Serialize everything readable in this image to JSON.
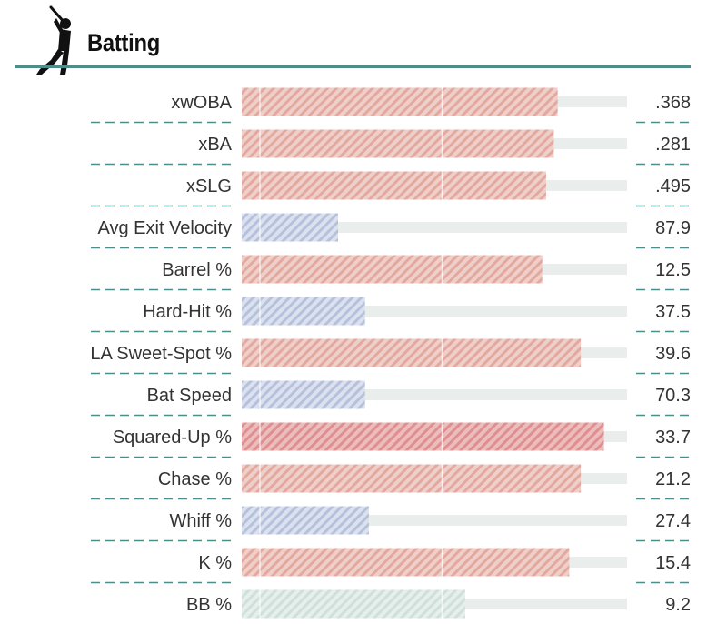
{
  "section": {
    "title": "Batting",
    "icon": "baseball-batter-icon"
  },
  "colors": {
    "header_rule": "#4f8d8b",
    "divider": "#4f8d8b",
    "track": "#e9eeed",
    "bar_red": "#e3a99f",
    "bar_red_strong": "#e08e8e",
    "bar_blue": "#b6c1dc",
    "bar_green": "#c8dcd6"
  },
  "chart_data": {
    "type": "bar",
    "orientation": "horizontal",
    "value_axis": "percentile",
    "xlim": [
      0,
      100
    ],
    "grid": false,
    "legend": "none",
    "metrics": [
      {
        "label": "xwOBA",
        "value": ".368",
        "percentile": 82,
        "color": "red"
      },
      {
        "label": "xBA",
        "value": ".281",
        "percentile": 81,
        "color": "red"
      },
      {
        "label": "xSLG",
        "value": ".495",
        "percentile": 79,
        "color": "red"
      },
      {
        "label": "Avg Exit Velocity",
        "value": "87.9",
        "percentile": 25,
        "color": "blue"
      },
      {
        "label": "Barrel %",
        "value": "12.5",
        "percentile": 78,
        "color": "red"
      },
      {
        "label": "Hard-Hit %",
        "value": "37.5",
        "percentile": 32,
        "color": "blue"
      },
      {
        "label": "LA Sweet-Spot %",
        "value": "39.6",
        "percentile": 88,
        "color": "red"
      },
      {
        "label": "Bat Speed",
        "value": "70.3",
        "percentile": 32,
        "color": "blue"
      },
      {
        "label": "Squared-Up %",
        "value": "33.7",
        "percentile": 94,
        "color": "red_strong"
      },
      {
        "label": "Chase %",
        "value": "21.2",
        "percentile": 88,
        "color": "red"
      },
      {
        "label": "Whiff %",
        "value": "27.4",
        "percentile": 33,
        "color": "blue"
      },
      {
        "label": "K %",
        "value": "15.4",
        "percentile": 85,
        "color": "red"
      },
      {
        "label": "BB %",
        "value": "9.2",
        "percentile": 58,
        "color": "green"
      }
    ]
  }
}
